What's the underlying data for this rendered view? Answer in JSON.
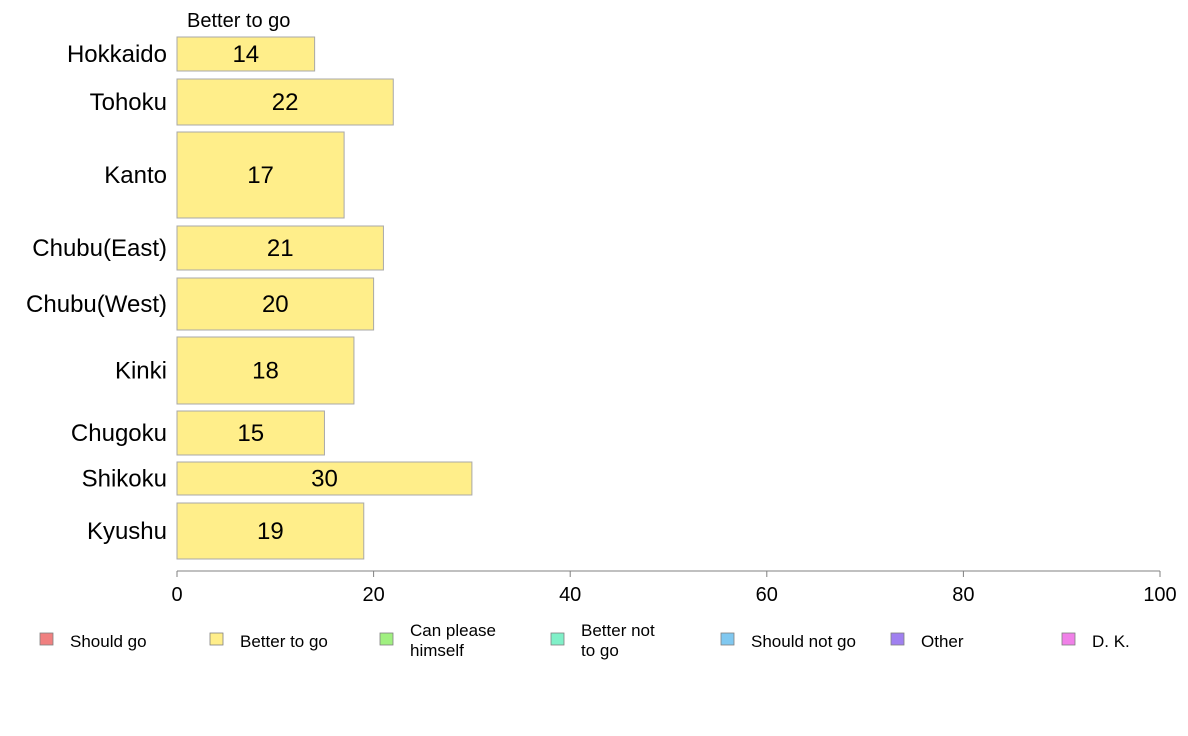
{
  "chart_data": {
    "type": "bar",
    "orientation": "horizontal",
    "series_title": "Better to go",
    "categories": [
      "Hokkaido",
      "Tohoku",
      "Kanto",
      "Chubu(East)",
      "Chubu(West)",
      "Kinki",
      "Chugoku",
      "Shikoku",
      "Kyushu"
    ],
    "series": [
      {
        "name": "Better to go",
        "values": [
          14,
          22,
          17,
          21,
          20,
          18,
          15,
          30,
          19
        ],
        "color": "#ffee8a"
      }
    ],
    "xlim": [
      0,
      100
    ],
    "xticks": [
      0,
      20,
      40,
      60,
      80,
      100
    ],
    "grid": false,
    "legend_position": "bottom",
    "legend": [
      {
        "label": "Should go",
        "color": "#f08080"
      },
      {
        "label": "Better to go",
        "color": "#ffee8a"
      },
      {
        "label": "Can please himself",
        "color": "#a0f080"
      },
      {
        "label": "Better not to go",
        "color": "#80f0c8"
      },
      {
        "label": "Should not go",
        "color": "#80c8f0"
      },
      {
        "label": "Other",
        "color": "#a080f0"
      },
      {
        "label": "D. K.",
        "color": "#f080e8"
      }
    ]
  }
}
